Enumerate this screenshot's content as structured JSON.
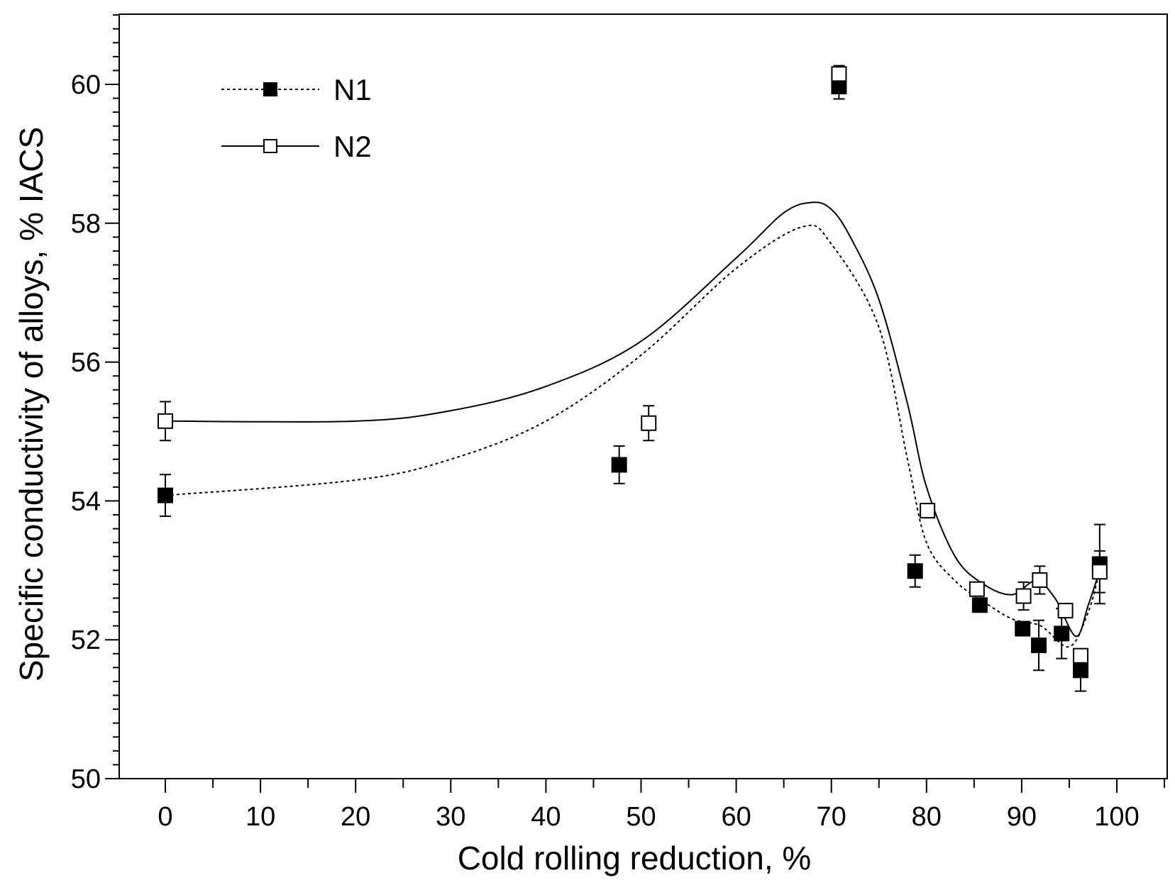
{
  "chart_data": {
    "type": "scatter",
    "title": "",
    "xlabel": "Cold rolling reduction, %",
    "ylabel": "Specific conductivity of alloys, % IACS",
    "xlim": [
      -5,
      105
    ],
    "ylim": [
      50,
      61
    ],
    "xticks": [
      0,
      10,
      20,
      30,
      40,
      50,
      60,
      70,
      80,
      90,
      100
    ],
    "yticks": [
      50,
      52,
      54,
      56,
      58,
      60
    ],
    "grid": false,
    "legend_position": "top-left",
    "series": [
      {
        "name": "N1",
        "marker": "filled-square",
        "line": "dotted",
        "points": [
          {
            "x": 0,
            "y": 54.08,
            "err": 0.3
          },
          {
            "x": 47.7,
            "y": 54.52,
            "err": 0.27
          },
          {
            "x": 70.8,
            "y": 59.97,
            "err": 0.18
          },
          {
            "x": 78.8,
            "y": 52.99,
            "err": 0.23
          },
          {
            "x": 85.6,
            "y": 52.5,
            "err": 0.1
          },
          {
            "x": 90.1,
            "y": 52.16,
            "err": 0.1
          },
          {
            "x": 91.8,
            "y": 51.92,
            "err": 0.36
          },
          {
            "x": 94.2,
            "y": 52.09,
            "err": 0.36
          },
          {
            "x": 96.2,
            "y": 51.56,
            "err": 0.3
          },
          {
            "x": 98.2,
            "y": 53.09,
            "err": 0.57
          }
        ],
        "curve": [
          [
            0,
            54.08
          ],
          [
            20,
            54.3
          ],
          [
            30,
            54.6
          ],
          [
            40,
            55.15
          ],
          [
            50,
            56.1
          ],
          [
            60,
            57.35
          ],
          [
            67,
            57.95
          ],
          [
            70,
            57.7
          ],
          [
            75,
            56.5
          ],
          [
            78,
            54.6
          ],
          [
            80,
            53.4
          ],
          [
            83,
            52.85
          ],
          [
            86,
            52.55
          ],
          [
            89,
            52.3
          ],
          [
            92,
            52.2
          ],
          [
            95,
            51.9
          ],
          [
            97,
            52.4
          ],
          [
            98.2,
            53.0
          ]
        ]
      },
      {
        "name": "N2",
        "marker": "open-square",
        "line": "solid",
        "points": [
          {
            "x": 0,
            "y": 55.15,
            "err": 0.28
          },
          {
            "x": 50.8,
            "y": 55.12,
            "err": 0.25
          },
          {
            "x": 70.8,
            "y": 60.15,
            "err": 0.12
          },
          {
            "x": 80.1,
            "y": 53.86,
            "err": 0.05
          },
          {
            "x": 85.3,
            "y": 52.73,
            "err": 0.07
          },
          {
            "x": 90.2,
            "y": 52.63,
            "err": 0.2
          },
          {
            "x": 91.9,
            "y": 52.86,
            "err": 0.2
          },
          {
            "x": 94.6,
            "y": 52.42,
            "err": 0.06
          },
          {
            "x": 96.2,
            "y": 51.77,
            "err": 0.08
          },
          {
            "x": 98.2,
            "y": 52.98,
            "err": 0.3
          }
        ],
        "curve": [
          [
            0,
            55.15
          ],
          [
            20,
            55.15
          ],
          [
            30,
            55.3
          ],
          [
            40,
            55.65
          ],
          [
            50,
            56.3
          ],
          [
            60,
            57.5
          ],
          [
            65,
            58.15
          ],
          [
            68,
            58.3
          ],
          [
            70,
            58.2
          ],
          [
            72,
            57.8
          ],
          [
            75,
            56.9
          ],
          [
            78,
            55.4
          ],
          [
            80,
            54.2
          ],
          [
            83,
            53.2
          ],
          [
            86,
            52.8
          ],
          [
            89,
            52.65
          ],
          [
            91.5,
            52.85
          ],
          [
            93.5,
            52.6
          ],
          [
            95.7,
            52.05
          ],
          [
            97,
            52.5
          ],
          [
            98.2,
            53.0
          ]
        ]
      }
    ]
  }
}
